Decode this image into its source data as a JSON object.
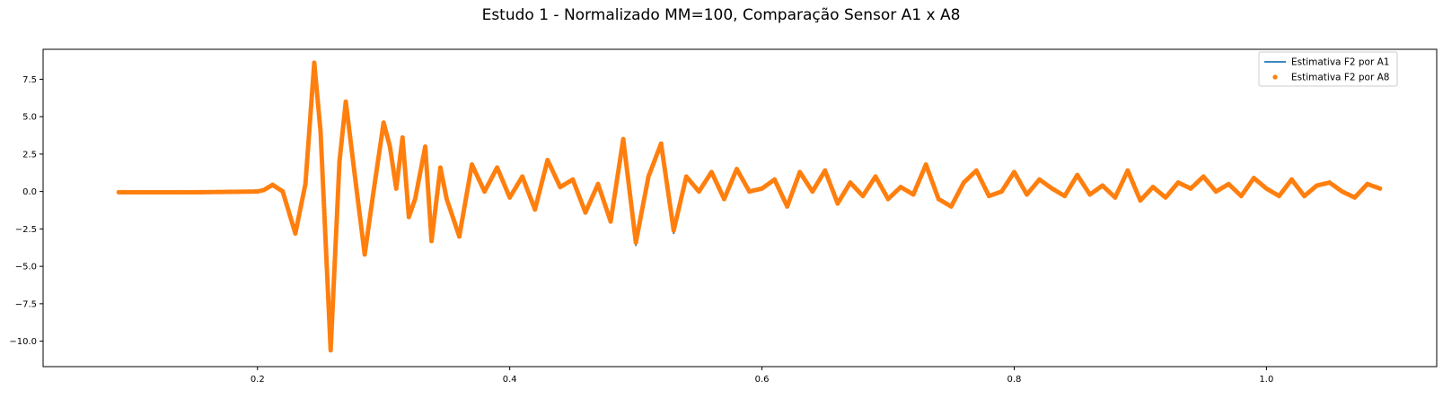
{
  "chart_data": {
    "type": "line",
    "title": "Estudo 1 - Normalizado MM=100, Comparação Sensor A1 x A8",
    "xlabel": "",
    "ylabel": "",
    "xlim": [
      0.03,
      1.135
    ],
    "ylim": [
      -11.7,
      9.5
    ],
    "xticks": [
      0.2,
      0.4,
      0.6,
      0.8,
      1.0
    ],
    "xtick_labels": [
      "0.2",
      "0.4",
      "0.6",
      "0.8",
      "1.0"
    ],
    "yticks": [
      7.5,
      5.0,
      2.5,
      0.0,
      -2.5,
      -5.0,
      -7.5,
      -10.0
    ],
    "ytick_labels": [
      "7.5",
      "5.0",
      "2.5",
      "0.0",
      "−2.5",
      "−5.0",
      "−7.5",
      "−10.0"
    ],
    "grid": false,
    "legend_position": "top-right",
    "series": [
      {
        "name": "Estimativa F2 por A1",
        "style": "line",
        "color": "#1f77b4",
        "x": [
          0.09,
          0.15,
          0.2,
          0.205,
          0.212,
          0.22,
          0.23,
          0.238,
          0.245,
          0.25,
          0.258,
          0.265,
          0.27,
          0.278,
          0.285,
          0.292,
          0.3,
          0.305,
          0.31,
          0.315,
          0.32,
          0.325,
          0.333,
          0.338,
          0.345,
          0.35,
          0.36,
          0.37,
          0.38,
          0.39,
          0.4,
          0.41,
          0.42,
          0.43,
          0.44,
          0.45,
          0.46,
          0.47,
          0.48,
          0.49,
          0.5,
          0.51,
          0.52,
          0.53,
          0.54,
          0.55,
          0.56,
          0.57,
          0.58,
          0.59,
          0.6,
          0.61,
          0.62,
          0.63,
          0.64,
          0.65,
          0.66,
          0.67,
          0.68,
          0.69,
          0.7,
          0.71,
          0.72,
          0.73,
          0.74,
          0.75,
          0.76,
          0.77,
          0.78,
          0.79,
          0.8,
          0.81,
          0.82,
          0.83,
          0.84,
          0.85,
          0.86,
          0.87,
          0.88,
          0.89,
          0.9,
          0.91,
          0.92,
          0.93,
          0.94,
          0.95,
          0.96,
          0.97,
          0.98,
          0.99,
          1.0,
          1.01,
          1.02,
          1.03,
          1.04,
          1.05,
          1.06,
          1.07,
          1.08,
          1.09
        ],
        "y": [
          -0.05,
          -0.05,
          0.0,
          0.1,
          0.45,
          0.0,
          -2.8,
          0.5,
          8.6,
          4.0,
          -10.7,
          2.0,
          6.0,
          0.5,
          -4.3,
          0.0,
          4.7,
          3.0,
          0.2,
          3.7,
          -1.8,
          -0.5,
          3.0,
          -3.4,
          1.6,
          -0.5,
          -3.0,
          1.8,
          0.0,
          1.6,
          -0.4,
          1.0,
          -1.2,
          2.0,
          0.3,
          0.8,
          -1.5,
          0.5,
          -2.0,
          3.3,
          -3.6,
          1.0,
          3.0,
          -2.8,
          1.0,
          0.0,
          1.3,
          -0.5,
          1.5,
          0.0,
          0.2,
          0.8,
          -1.0,
          1.3,
          0.0,
          1.4,
          -0.8,
          0.6,
          -0.3,
          1.0,
          -0.5,
          0.3,
          -0.2,
          1.8,
          -0.5,
          -1.0,
          0.6,
          1.4,
          -0.3,
          0.0,
          1.3,
          -0.2,
          0.8,
          0.2,
          -0.3,
          1.1,
          -0.2,
          0.4,
          -0.4,
          1.4,
          -0.6,
          0.3,
          -0.4,
          0.6,
          0.2,
          1.0,
          0.0,
          0.5,
          -0.3,
          0.9,
          0.2,
          -0.3,
          0.8,
          -0.3,
          0.4,
          0.6,
          0.0,
          -0.4,
          0.5,
          0.2
        ]
      },
      {
        "name": "Estimativa F2 por A8",
        "style": "markers",
        "color": "#ff7f0e",
        "x": [
          0.09,
          0.15,
          0.2,
          0.205,
          0.212,
          0.22,
          0.23,
          0.238,
          0.245,
          0.25,
          0.258,
          0.265,
          0.27,
          0.278,
          0.285,
          0.292,
          0.3,
          0.305,
          0.31,
          0.315,
          0.32,
          0.325,
          0.333,
          0.338,
          0.345,
          0.35,
          0.36,
          0.37,
          0.38,
          0.39,
          0.4,
          0.41,
          0.42,
          0.43,
          0.44,
          0.45,
          0.46,
          0.47,
          0.48,
          0.49,
          0.5,
          0.51,
          0.52,
          0.53,
          0.54,
          0.55,
          0.56,
          0.57,
          0.58,
          0.59,
          0.6,
          0.61,
          0.62,
          0.63,
          0.64,
          0.65,
          0.66,
          0.67,
          0.68,
          0.69,
          0.7,
          0.71,
          0.72,
          0.73,
          0.74,
          0.75,
          0.76,
          0.77,
          0.78,
          0.79,
          0.8,
          0.81,
          0.82,
          0.83,
          0.84,
          0.85,
          0.86,
          0.87,
          0.88,
          0.89,
          0.9,
          0.91,
          0.92,
          0.93,
          0.94,
          0.95,
          0.96,
          0.97,
          0.98,
          0.99,
          1.0,
          1.01,
          1.02,
          1.03,
          1.04,
          1.05,
          1.06,
          1.07,
          1.08,
          1.09
        ],
        "y": [
          -0.05,
          -0.05,
          0.0,
          0.1,
          0.45,
          0.0,
          -2.8,
          0.5,
          8.6,
          4.0,
          -10.6,
          2.0,
          6.0,
          0.5,
          -4.2,
          0.0,
          4.6,
          3.0,
          0.2,
          3.6,
          -1.7,
          -0.5,
          3.0,
          -3.3,
          1.6,
          -0.5,
          -3.0,
          1.8,
          0.0,
          1.6,
          -0.4,
          1.0,
          -1.2,
          2.1,
          0.3,
          0.8,
          -1.4,
          0.5,
          -2.0,
          3.5,
          -3.4,
          1.0,
          3.2,
          -2.6,
          1.0,
          0.0,
          1.3,
          -0.5,
          1.5,
          0.0,
          0.2,
          0.8,
          -1.0,
          1.3,
          0.0,
          1.4,
          -0.8,
          0.6,
          -0.3,
          1.0,
          -0.5,
          0.3,
          -0.2,
          1.8,
          -0.5,
          -1.0,
          0.6,
          1.4,
          -0.3,
          0.0,
          1.3,
          -0.2,
          0.8,
          0.2,
          -0.3,
          1.1,
          -0.2,
          0.4,
          -0.4,
          1.4,
          -0.6,
          0.3,
          -0.4,
          0.6,
          0.2,
          1.0,
          0.0,
          0.5,
          -0.3,
          0.9,
          0.2,
          -0.3,
          0.8,
          -0.3,
          0.4,
          0.6,
          0.0,
          -0.4,
          0.5,
          0.2
        ]
      }
    ]
  }
}
